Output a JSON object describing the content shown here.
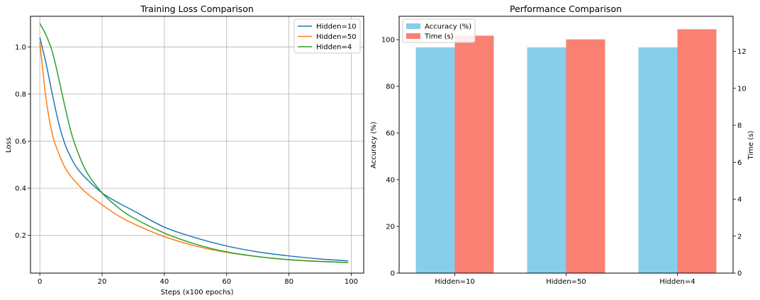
{
  "chart_data": [
    {
      "type": "line",
      "title": "Training Loss Comparison",
      "xlabel": "Steps (x100 epochs)",
      "ylabel": "Loss",
      "xlim": [
        -3,
        104
      ],
      "ylim": [
        0.04,
        1.13
      ],
      "x_ticks": [
        0,
        20,
        40,
        60,
        80,
        100
      ],
      "y_ticks": [
        0.2,
        0.4,
        0.6,
        0.8,
        1.0
      ],
      "grid": true,
      "legend_position": "top-right",
      "x": [
        0,
        2,
        4,
        6,
        8,
        10,
        12,
        15,
        20,
        25,
        30,
        40,
        50,
        60,
        70,
        80,
        90,
        99
      ],
      "series": [
        {
          "name": "Hidden=10",
          "color": "#1f77b4",
          "values": [
            1.04,
            0.93,
            0.8,
            0.68,
            0.59,
            0.53,
            0.485,
            0.44,
            0.38,
            0.34,
            0.305,
            0.235,
            0.19,
            0.155,
            0.13,
            0.113,
            0.1,
            0.092
          ]
        },
        {
          "name": "Hidden=50",
          "color": "#ff7f0e",
          "values": [
            1.02,
            0.78,
            0.63,
            0.55,
            0.49,
            0.45,
            0.42,
            0.38,
            0.33,
            0.285,
            0.25,
            0.195,
            0.155,
            0.128,
            0.11,
            0.097,
            0.09,
            0.085
          ]
        },
        {
          "name": "Hidden=4",
          "color": "#2ca02c",
          "values": [
            1.1,
            1.05,
            0.98,
            0.87,
            0.75,
            0.64,
            0.56,
            0.47,
            0.38,
            0.32,
            0.275,
            0.21,
            0.163,
            0.13,
            0.11,
            0.097,
            0.089,
            0.085
          ]
        }
      ]
    },
    {
      "type": "bar",
      "title": "Performance Comparison",
      "xlabel": "",
      "ylabel": "Accuracy (%)",
      "y2label": "Time (s)",
      "categories": [
        "Hidden=10",
        "Hidden=50",
        "Hidden=4"
      ],
      "ylim": [
        0,
        110
      ],
      "y2lim": [
        0,
        13.9
      ],
      "y_ticks": [
        0,
        20,
        40,
        60,
        80,
        100
      ],
      "y2_ticks": [
        0,
        2,
        4,
        6,
        8,
        10,
        12
      ],
      "grid": false,
      "legend_position": "top-left",
      "series": [
        {
          "name": "Accuracy (%)",
          "axis": "left",
          "color": "#87ceeb",
          "values": [
            96.7,
            96.7,
            96.7
          ]
        },
        {
          "name": "Time (s)",
          "axis": "right",
          "color": "#fa8072",
          "values": [
            12.85,
            12.65,
            13.2
          ]
        }
      ]
    }
  ]
}
